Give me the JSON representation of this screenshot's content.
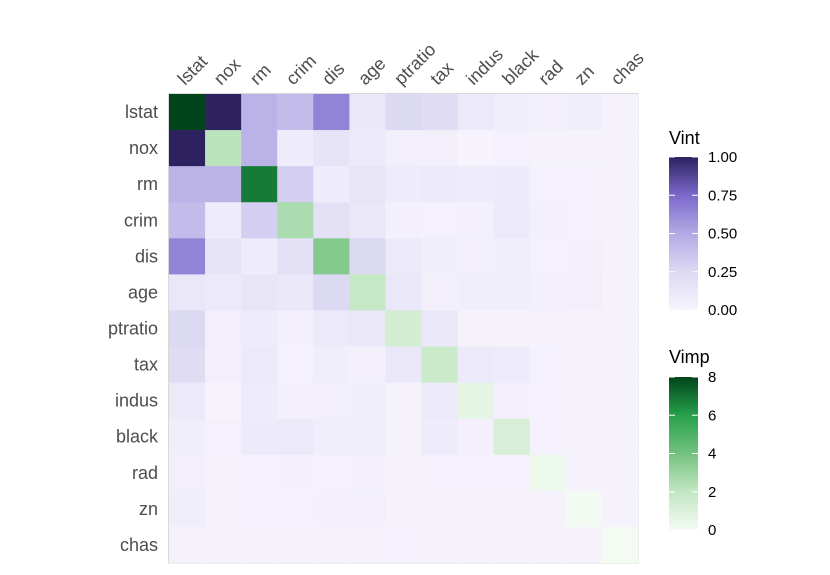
{
  "chart_data": {
    "type": "heatmap",
    "variables": [
      "lstat",
      "nox",
      "rm",
      "crim",
      "dis",
      "age",
      "ptratio",
      "tax",
      "indus",
      "black",
      "rad",
      "zn",
      "chas"
    ],
    "diagonal_measure": "Vimp",
    "offdiagonal_measure": "Vint",
    "vimp": [
      8,
      2.2,
      6.8,
      2.6,
      3.6,
      1.9,
      1.4,
      1.7,
      0.6,
      1.2,
      0.3,
      0.1,
      0.05
    ],
    "vint": [
      [
        null,
        1.0,
        0.45,
        0.4,
        0.65,
        0.12,
        0.25,
        0.22,
        0.1,
        0.06,
        0.05,
        0.06,
        0.02
      ],
      [
        1.0,
        null,
        0.45,
        0.08,
        0.15,
        0.1,
        0.05,
        0.05,
        0.01,
        0.03,
        0.02,
        0.02,
        0.02
      ],
      [
        0.45,
        0.45,
        null,
        0.3,
        0.08,
        0.14,
        0.08,
        0.1,
        0.08,
        0.09,
        0.03,
        0.03,
        0.02
      ],
      [
        0.4,
        0.08,
        0.3,
        null,
        0.18,
        0.12,
        0.04,
        0.03,
        0.04,
        0.1,
        0.04,
        0.03,
        0.02
      ],
      [
        0.65,
        0.15,
        0.08,
        0.18,
        null,
        0.25,
        0.1,
        0.06,
        0.05,
        0.06,
        0.03,
        0.04,
        0.02
      ],
      [
        0.12,
        0.1,
        0.14,
        0.12,
        0.25,
        null,
        0.12,
        0.04,
        0.06,
        0.06,
        0.04,
        0.05,
        0.02
      ],
      [
        0.25,
        0.05,
        0.08,
        0.04,
        0.1,
        0.12,
        null,
        0.12,
        0.02,
        0.02,
        0.02,
        0.02,
        0.02
      ],
      [
        0.22,
        0.05,
        0.1,
        0.03,
        0.06,
        0.04,
        0.12,
        null,
        0.1,
        0.08,
        0.03,
        0.02,
        0.02
      ],
      [
        0.1,
        0.01,
        0.08,
        0.04,
        0.05,
        0.06,
        0.02,
        0.1,
        null,
        0.04,
        0.03,
        0.02,
        0.02
      ],
      [
        0.06,
        0.03,
        0.09,
        0.1,
        0.06,
        0.06,
        0.02,
        0.08,
        0.04,
        null,
        0.03,
        0.02,
        0.02
      ],
      [
        0.05,
        0.02,
        0.03,
        0.04,
        0.03,
        0.04,
        0.02,
        0.03,
        0.03,
        0.03,
        null,
        0.02,
        0.02
      ],
      [
        0.06,
        0.02,
        0.03,
        0.03,
        0.04,
        0.05,
        0.02,
        0.02,
        0.02,
        0.02,
        0.02,
        null,
        0.02
      ],
      [
        0.02,
        0.02,
        0.02,
        0.02,
        0.02,
        0.02,
        0.03,
        0.02,
        0.02,
        0.02,
        0.02,
        0.02,
        null
      ]
    ],
    "legends": [
      {
        "title": "Vint",
        "range": [
          0,
          1
        ],
        "ticks": [
          1.0,
          0.75,
          0.5,
          0.25,
          0.0
        ],
        "tick_labels": [
          "1.00",
          "0.75",
          "0.50",
          "0.25",
          "0.00"
        ],
        "color_low": "#f7f4fd",
        "color_high": "#2d225f"
      },
      {
        "title": "Vimp",
        "range": [
          0,
          8
        ],
        "ticks": [
          8,
          6,
          4,
          2,
          0
        ],
        "tick_labels": [
          "8",
          "6",
          "4",
          "2",
          "0"
        ],
        "color_low": "#f4fbf4",
        "color_high": "#00441b"
      }
    ],
    "legend_position": "right",
    "panel_background": "#f7f7f7"
  }
}
